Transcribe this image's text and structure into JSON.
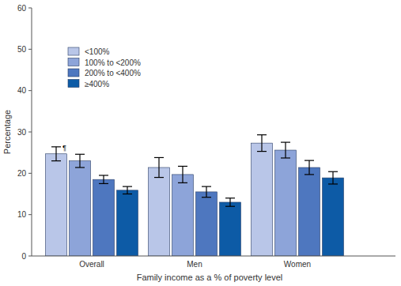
{
  "chart_data": {
    "type": "bar",
    "x_label": "Family income as a % of poverty level",
    "y_label": "Percentage",
    "categories": [
      "Overall",
      "Men",
      "Women"
    ],
    "series": [
      {
        "name": "<100%",
        "color": "#b9c6e8",
        "values": [
          24.7,
          21.4,
          27.3
        ],
        "errors": [
          1.7,
          2.4,
          2.0
        ]
      },
      {
        "name": "100% to <200%",
        "color": "#8da4d9",
        "values": [
          23.0,
          19.7,
          25.6
        ],
        "errors": [
          1.6,
          2.0,
          1.9
        ]
      },
      {
        "name": "200% to <400%",
        "color": "#4e77bf",
        "values": [
          18.5,
          15.5,
          21.4
        ],
        "errors": [
          1.0,
          1.3,
          1.7
        ]
      },
      {
        "name": "≥400%",
        "color": "#0d5ba6",
        "values": [
          15.9,
          13.0,
          18.9
        ],
        "errors": [
          0.9,
          1.0,
          1.5
        ]
      }
    ],
    "annotations": [
      {
        "text": "¶",
        "category": "Overall",
        "series": "<100%"
      }
    ],
    "ylim": [
      0,
      60
    ],
    "yticks": [
      0,
      10,
      20,
      30,
      40,
      50,
      60
    ],
    "grid": false,
    "legend": "top-left"
  }
}
